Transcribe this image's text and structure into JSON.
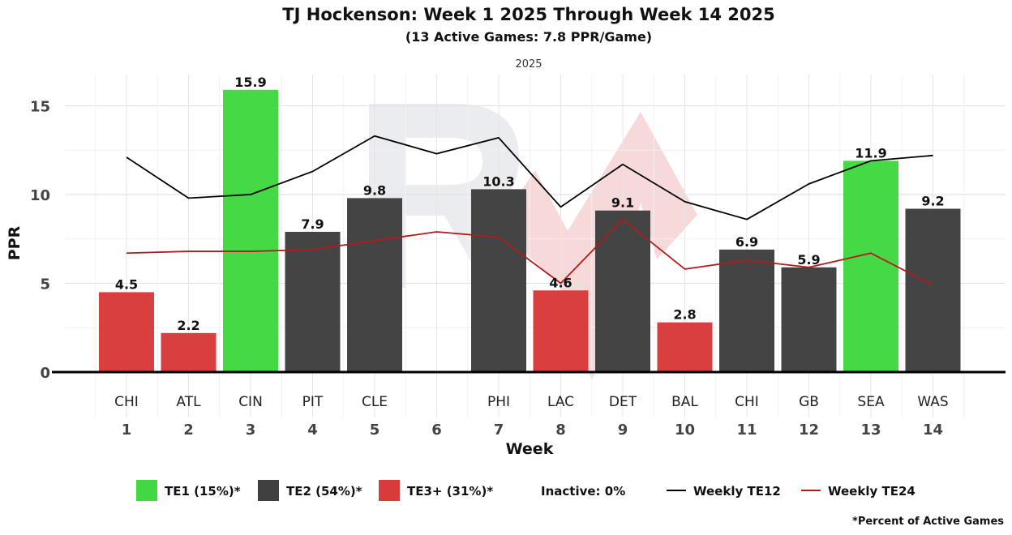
{
  "chart_data": {
    "type": "bar",
    "title": "TJ Hockenson: Week 1 2025 Through Week 14 2025",
    "subtitle": "(13 Active Games: 7.8 PPR/Game)",
    "facet_label": "2025",
    "xlabel": "Week",
    "ylabel": "PPR",
    "ylim": [
      0,
      16.5
    ],
    "yticks": [
      0,
      5,
      10,
      15
    ],
    "weeks": [
      "1",
      "2",
      "3",
      "4",
      "5",
      "6",
      "7",
      "8",
      "9",
      "10",
      "11",
      "12",
      "13",
      "14"
    ],
    "opponents": [
      "CHI",
      "ATL",
      "CIN",
      "PIT",
      "CLE",
      "",
      "PHI",
      "LAC",
      "DET",
      "BAL",
      "CHI",
      "GB",
      "SEA",
      "WAS"
    ],
    "values": [
      4.5,
      2.2,
      15.9,
      7.9,
      9.8,
      null,
      10.3,
      4.6,
      9.1,
      2.8,
      6.9,
      5.9,
      11.9,
      9.2
    ],
    "value_labels": [
      "4.5",
      "2.2",
      "15.9",
      "7.9",
      "9.8",
      "",
      "10.3",
      "4.6",
      "9.1",
      "2.8",
      "6.9",
      "5.9",
      "11.9",
      "9.2"
    ],
    "tiers": [
      "TE3+",
      "TE3+",
      "TE1",
      "TE2",
      "TE2",
      "",
      "TE2",
      "TE3+",
      "TE2",
      "TE3+",
      "TE2",
      "TE2",
      "TE1",
      "TE2"
    ],
    "tier_colors": {
      "TE1": "#42d842",
      "TE2": "#404040",
      "TE3+": "#d93b3b"
    },
    "series": [
      {
        "name": "Weekly TE12",
        "color": "#000000",
        "values": [
          12.1,
          9.8,
          10.0,
          11.3,
          13.3,
          12.3,
          13.2,
          9.3,
          11.7,
          9.6,
          8.6,
          10.6,
          11.9,
          12.2
        ]
      },
      {
        "name": "Weekly TE24",
        "color": "#b01c1c",
        "values": [
          6.7,
          6.8,
          6.8,
          6.9,
          7.4,
          7.9,
          7.6,
          5.0,
          8.6,
          5.8,
          6.3,
          5.9,
          6.7,
          4.9
        ]
      }
    ],
    "grid": true,
    "legend_position": "bottom"
  },
  "legend": {
    "te1": "TE1 (15%)*",
    "te2": "TE2 (54%)*",
    "te3": "TE3+ (31%)*",
    "inactive": "Inactive: 0%",
    "te12_line": "Weekly TE12",
    "te24_line": "Weekly TE24"
  },
  "footnote": "*Percent of Active Games"
}
